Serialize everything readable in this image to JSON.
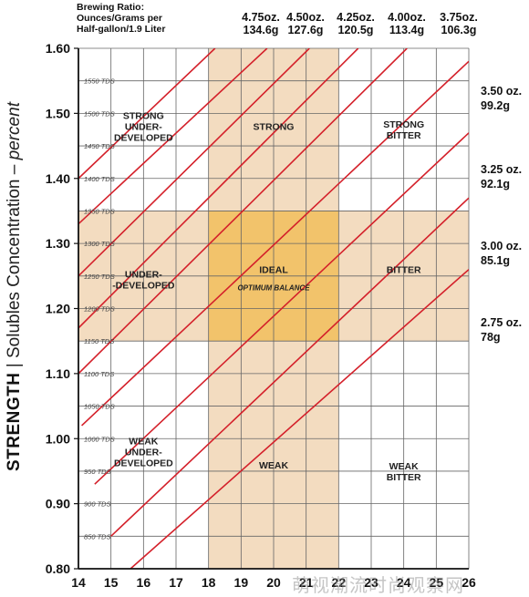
{
  "chart_data": {
    "type": "line",
    "xlim": [
      14,
      26
    ],
    "ylim": [
      0.8,
      1.6
    ],
    "x_ticks": [
      "14",
      "15",
      "16",
      "17",
      "18",
      "19",
      "20",
      "21",
      "22",
      "23",
      "24",
      "25",
      "26"
    ],
    "y_ticks": [
      "0.80",
      "0.90",
      "1.00",
      "1.10",
      "1.20",
      "1.30",
      "1.40",
      "1.50",
      "1.60"
    ],
    "tds_ticks": [
      "850 TDS",
      "900 TDS",
      "950 TDS",
      "1000 TDS",
      "1050 TDS",
      "1100 TDS",
      "1150 TDS",
      "1200 TDS",
      "1250 TDS",
      "1300 TDS",
      "1350 TDS",
      "1400 TDS",
      "1450 TDS",
      "1500 TDS",
      "1550 TDS"
    ],
    "y_label_bold": "STRENGTH",
    "y_label_sep": "|",
    "y_label_text": "Solubles Concentration –",
    "y_label_italic": "percent",
    "header_label": [
      "Brewing Ratio:",
      "Ounces/Grams per",
      "Half-gallon/1.9 Liter"
    ],
    "ideal_band": {
      "x": [
        18,
        22
      ],
      "y": [
        1.15,
        1.35
      ],
      "color": "#F2C36B"
    },
    "band_color": "#F3DCC0",
    "grid": true,
    "line_color": "#D4202A",
    "series": [
      {
        "oz": "4.75oz.",
        "g": "134.6g",
        "points": [
          [
            14,
            1.4
          ],
          [
            18.2,
            1.6
          ]
        ]
      },
      {
        "oz": "4.50oz.",
        "g": "127.6g",
        "points": [
          [
            14,
            1.33
          ],
          [
            19.8,
            1.6
          ]
        ]
      },
      {
        "oz": "4.25oz.",
        "g": "120.5g",
        "points": [
          [
            14,
            1.25
          ],
          [
            21.1,
            1.6
          ]
        ]
      },
      {
        "oz": "4.00oz.",
        "g": "113.4g",
        "points": [
          [
            14,
            1.17
          ],
          [
            22.6,
            1.6
          ]
        ]
      },
      {
        "oz": "3.75oz.",
        "g": "106.3g",
        "points": [
          [
            14,
            1.1
          ],
          [
            24.1,
            1.6
          ]
        ]
      },
      {
        "oz": "3.50 oz.",
        "g": "99.2g",
        "points": [
          [
            14.1,
            1.02
          ],
          [
            26,
            1.58
          ]
        ]
      },
      {
        "oz": "3.25 oz.",
        "g": "92.1g",
        "points": [
          [
            14.5,
            0.93
          ],
          [
            26,
            1.47
          ]
        ]
      },
      {
        "oz": "3.00 oz.",
        "g": "85.1g",
        "points": [
          [
            15.0,
            0.85
          ],
          [
            26,
            1.37
          ]
        ]
      },
      {
        "oz": "2.75 oz.",
        "g": "78g",
        "points": [
          [
            15.6,
            0.8
          ],
          [
            26,
            1.26
          ]
        ]
      }
    ],
    "annotations": [
      {
        "lines": [
          "STRONG",
          "UNDER-",
          "DEVELOPED"
        ],
        "x": 16.0,
        "y": 1.48
      },
      {
        "lines": [
          "STRONG"
        ],
        "x": 20.0,
        "y": 1.48
      },
      {
        "lines": [
          "STRONG",
          "BITTER"
        ],
        "x": 24.0,
        "y": 1.475
      },
      {
        "lines": [
          "UNDER-",
          "-DEVELOPED"
        ],
        "x": 16.0,
        "y": 1.245
      },
      {
        "lines": [
          "IDEAL"
        ],
        "x": 20.0,
        "y": 1.26
      },
      {
        "lines": [
          "BITTER"
        ],
        "x": 24.0,
        "y": 1.26
      },
      {
        "lines": [
          "WEAK",
          "UNDER-",
          "DEVELOPED"
        ],
        "x": 16.0,
        "y": 0.98
      },
      {
        "lines": [
          "WEAK"
        ],
        "x": 20.0,
        "y": 0.96
      },
      {
        "lines": [
          "WEAK",
          "BITTER"
        ],
        "x": 24.0,
        "y": 0.95
      }
    ],
    "sub_annotation": {
      "text": "OPTIMUM BALANCE",
      "x": 20.0,
      "y": 1.232
    }
  },
  "watermark": "萌视潮流时尚观察网"
}
